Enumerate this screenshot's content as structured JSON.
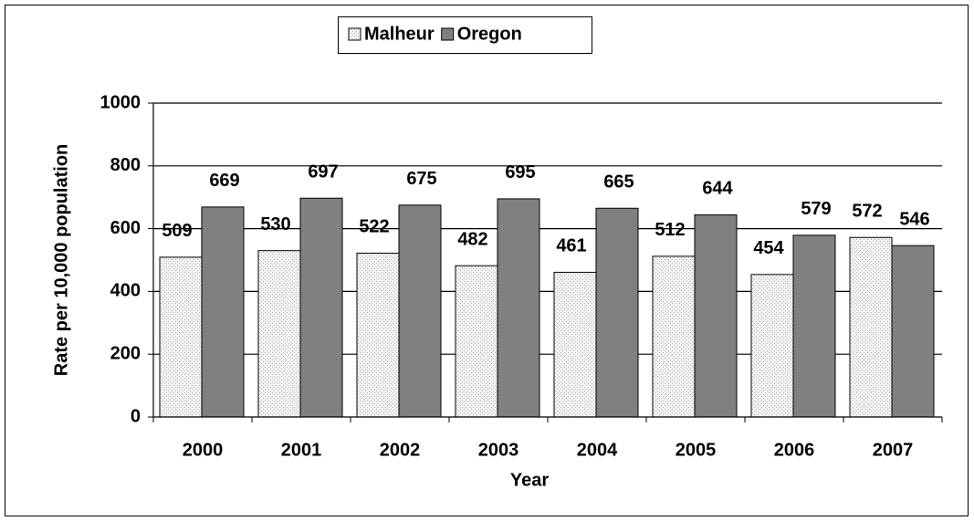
{
  "chart_data": {
    "type": "bar",
    "categories": [
      "2000",
      "2001",
      "2002",
      "2003",
      "2004",
      "2005",
      "2006",
      "2007"
    ],
    "series": [
      {
        "name": "Malheur",
        "color": "#e6e6e6",
        "values": [
          509,
          530,
          522,
          482,
          461,
          512,
          454,
          572
        ]
      },
      {
        "name": "Oregon",
        "color": "#808080",
        "values": [
          669,
          697,
          675,
          695,
          665,
          644,
          579,
          546
        ]
      }
    ],
    "x_label": "Year",
    "y_label": "Rate per 10,000 population",
    "ylim": [
      0,
      1000
    ],
    "yticks": [
      0,
      200,
      400,
      600,
      800,
      1000
    ],
    "grid": true,
    "legend": "top"
  }
}
